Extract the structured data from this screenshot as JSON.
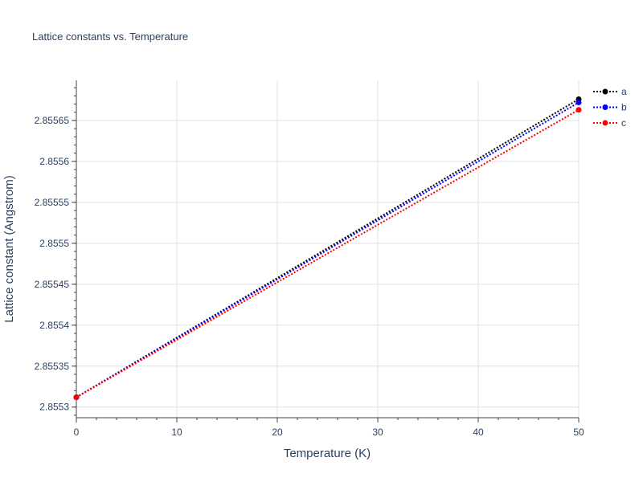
{
  "chart_data": {
    "type": "line",
    "title": "Lattice constants vs. Temperature",
    "xlabel": "Temperature (K)",
    "ylabel": "Lattice constant (Angstrom)",
    "xlim": [
      0,
      50
    ],
    "ylim": [
      2.855287,
      2.855699
    ],
    "xticks": [
      0,
      10,
      20,
      30,
      40,
      50
    ],
    "xtick_labels": [
      "0",
      "10",
      "20",
      "30",
      "40",
      "50"
    ],
    "yticks": [
      2.8553,
      2.85535,
      2.8554,
      2.85545,
      2.8555,
      2.85555,
      2.8556,
      2.85565
    ],
    "ytick_labels": [
      "2.8553",
      "2.85535",
      "2.8554",
      "2.85545",
      "2.8555",
      "2.85555",
      "2.8556",
      "2.85565"
    ],
    "grid": true,
    "legend_position": "top-right",
    "line_style": "dotted",
    "series": [
      {
        "name": "a",
        "color": "#000000",
        "x": [
          0,
          50
        ],
        "y": [
          2.855312,
          2.855676
        ]
      },
      {
        "name": "b",
        "color": "#0000ff",
        "x": [
          0,
          50
        ],
        "y": [
          2.855312,
          2.855672
        ]
      },
      {
        "name": "c",
        "color": "#ff0000",
        "x": [
          0,
          50
        ],
        "y": [
          2.855312,
          2.855663
        ]
      }
    ]
  }
}
